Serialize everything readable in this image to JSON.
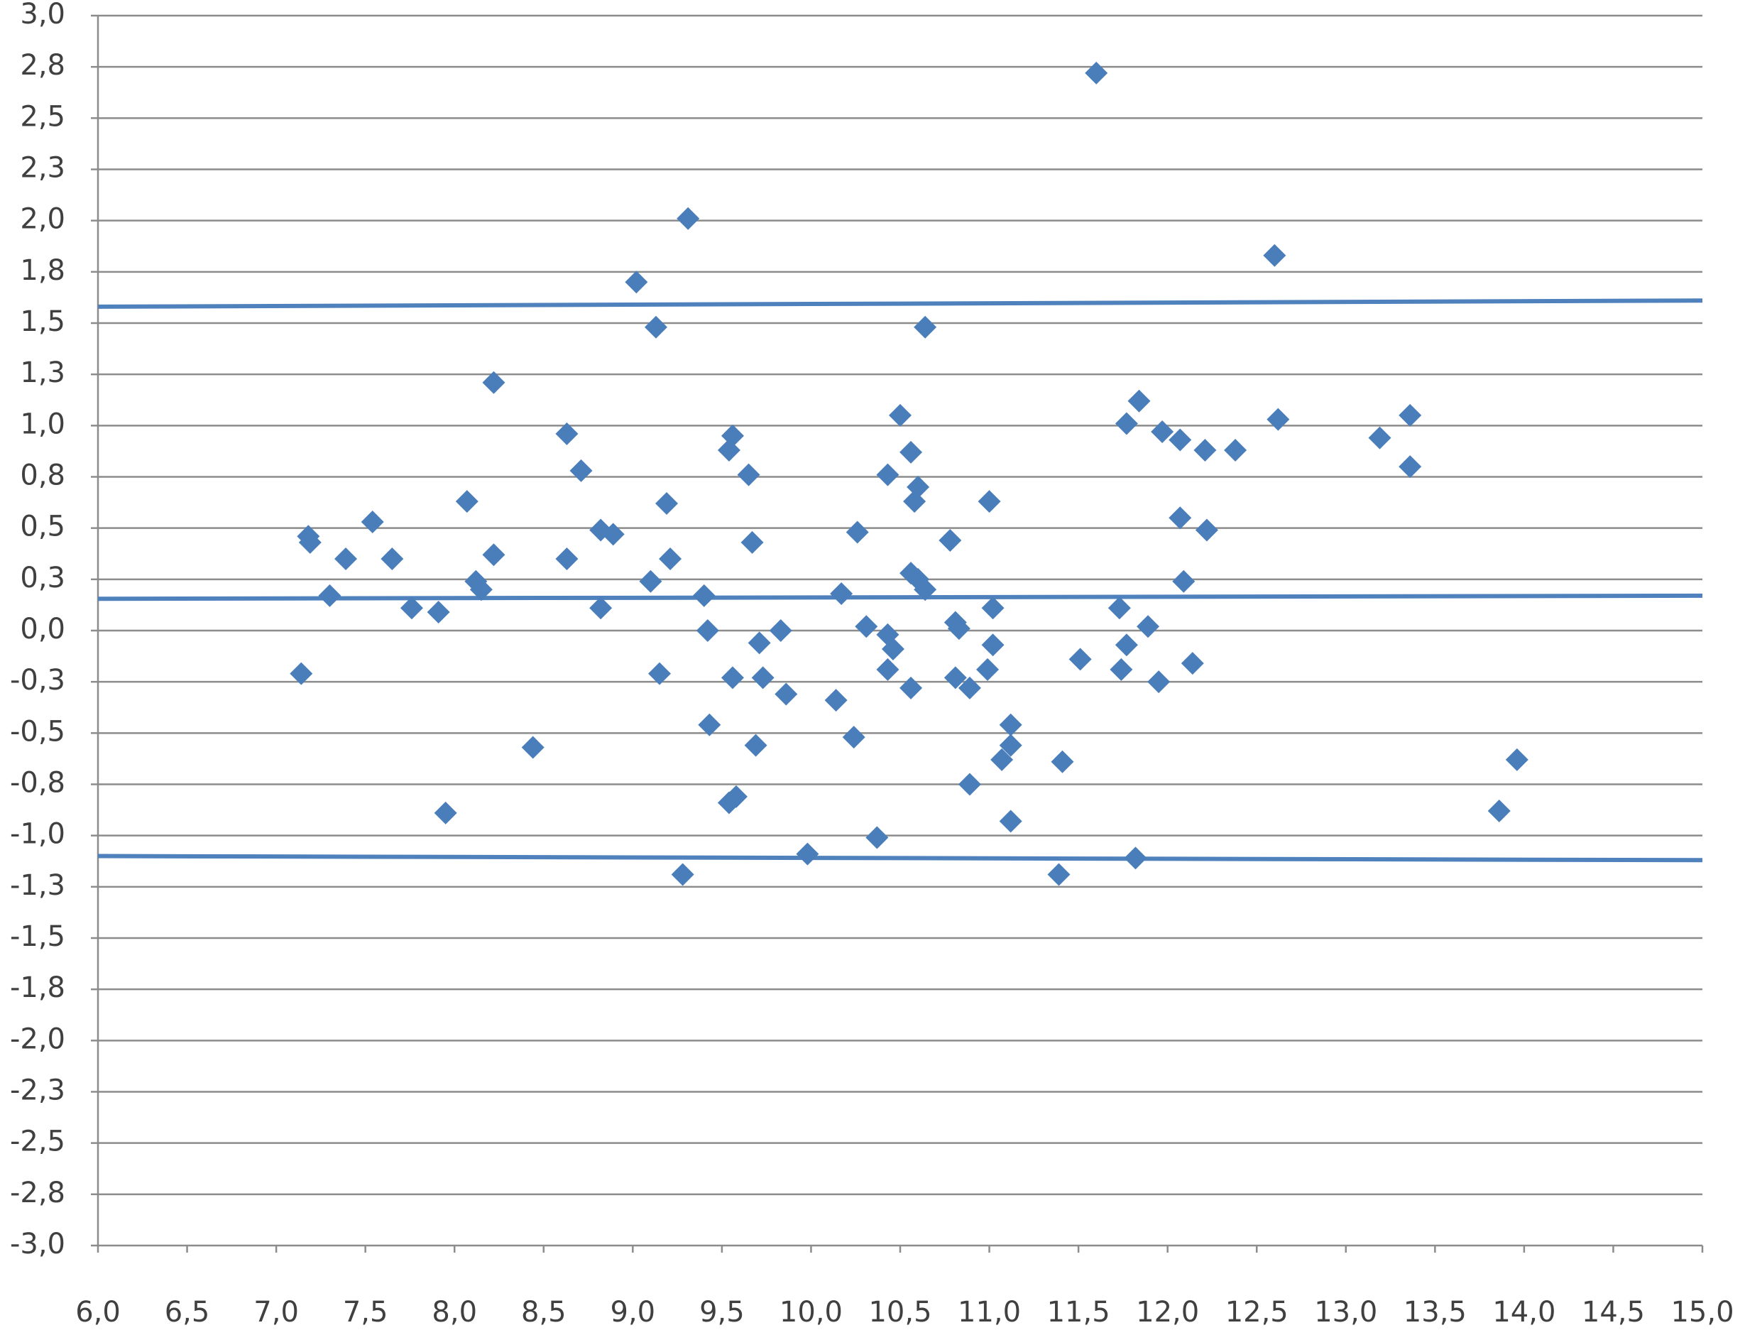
{
  "chart_data": {
    "type": "scatter",
    "xlim": [
      6,
      15
    ],
    "xticks": [
      {
        "value": 6,
        "label": "6,0"
      },
      {
        "value": 6.5,
        "label": "6,5"
      },
      {
        "value": 7,
        "label": "7,0"
      },
      {
        "value": 7.5,
        "label": "7,5"
      },
      {
        "value": 8,
        "label": "8,0"
      },
      {
        "value": 8.5,
        "label": "8,5"
      },
      {
        "value": 9,
        "label": "9,0"
      },
      {
        "value": 9.5,
        "label": "9,5"
      },
      {
        "value": 10,
        "label": "10,0"
      },
      {
        "value": 10.5,
        "label": "10,5"
      },
      {
        "value": 11,
        "label": "11,0"
      },
      {
        "value": 11.5,
        "label": "11,5"
      },
      {
        "value": 12,
        "label": "12,0"
      },
      {
        "value": 12.5,
        "label": "12,5"
      },
      {
        "value": 13,
        "label": "13,0"
      },
      {
        "value": 13.5,
        "label": "13,5"
      },
      {
        "value": 14,
        "label": "14,0"
      },
      {
        "value": 14.5,
        "label": "14,5"
      },
      {
        "value": 15,
        "label": "15,0"
      }
    ],
    "ylim": [
      -3,
      3
    ],
    "yticks": [
      {
        "value": 3,
        "label": "3,0"
      },
      {
        "value": 2.75,
        "label": "2,8"
      },
      {
        "value": 2.5,
        "label": "2,5"
      },
      {
        "value": 2.25,
        "label": "2,3"
      },
      {
        "value": 2,
        "label": "2,0"
      },
      {
        "value": 1.75,
        "label": "1,8"
      },
      {
        "value": 1.5,
        "label": "1,5"
      },
      {
        "value": 1.25,
        "label": "1,3"
      },
      {
        "value": 1,
        "label": "1,0"
      },
      {
        "value": 0.75,
        "label": "0,8"
      },
      {
        "value": 0.5,
        "label": "0,5"
      },
      {
        "value": 0.25,
        "label": "0,3"
      },
      {
        "value": 0,
        "label": "0,0"
      },
      {
        "value": -0.25,
        "label": "-0,3"
      },
      {
        "value": -0.5,
        "label": "-0,5"
      },
      {
        "value": -0.75,
        "label": "-0,8"
      },
      {
        "value": -1,
        "label": "-1,0"
      },
      {
        "value": -1.25,
        "label": "-1,3"
      },
      {
        "value": -1.5,
        "label": "-1,5"
      },
      {
        "value": -1.75,
        "label": "-1,8"
      },
      {
        "value": -2,
        "label": "-2,0"
      },
      {
        "value": -2.25,
        "label": "-2,3"
      },
      {
        "value": -2.5,
        "label": "-2,5"
      },
      {
        "value": -2.75,
        "label": "-2,8"
      },
      {
        "value": -3,
        "label": "-3,0"
      }
    ],
    "grid": true,
    "points": {
      "color": "#4a7ebb",
      "x": [
        11.6,
        9.31,
        12.6,
        9.02,
        9.13,
        10.64,
        8.22,
        11.84,
        11.77,
        10.5,
        12.62,
        13.36,
        11.97,
        12.07,
        12.21,
        12.38,
        13.19,
        13.36,
        8.63,
        9.56,
        9.54,
        8.71,
        9.65,
        10.56,
        10.43,
        10.6,
        10.58,
        11.0,
        8.07,
        9.19,
        7.18,
        7.19,
        7.54,
        7.39,
        7.65,
        8.22,
        8.63,
        8.82,
        8.89,
        9.21,
        9.67,
        10.26,
        10.78,
        12.07,
        12.22,
        9.1,
        8.12,
        8.15,
        7.3,
        7.76,
        7.91,
        8.82,
        9.4,
        10.17,
        10.56,
        10.6,
        10.64,
        12.09,
        11.02,
        11.73,
        9.42,
        9.83,
        9.71,
        10.31,
        10.43,
        10.46,
        10.81,
        10.83,
        11.02,
        11.89,
        11.77,
        7.14,
        9.15,
        9.56,
        9.73,
        9.86,
        10.43,
        10.56,
        10.81,
        10.89,
        10.99,
        11.51,
        11.74,
        11.95,
        12.14,
        10.14,
        9.43,
        11.12,
        10.24,
        8.44,
        9.69,
        11.12,
        11.07,
        11.41,
        13.96,
        10.89,
        9.58,
        9.54,
        7.95,
        13.86,
        11.12,
        10.37,
        9.98,
        11.82,
        9.28,
        11.39
      ],
      "y": [
        2.72,
        2.01,
        1.83,
        1.7,
        1.48,
        1.48,
        1.21,
        1.12,
        1.01,
        1.05,
        1.03,
        1.05,
        0.97,
        0.93,
        0.88,
        0.88,
        0.94,
        0.8,
        0.96,
        0.95,
        0.88,
        0.78,
        0.76,
        0.87,
        0.76,
        0.7,
        0.63,
        0.63,
        0.63,
        0.62,
        0.46,
        0.43,
        0.53,
        0.35,
        0.35,
        0.37,
        0.35,
        0.49,
        0.47,
        0.35,
        0.43,
        0.48,
        0.44,
        0.55,
        0.49,
        0.24,
        0.24,
        0.2,
        0.17,
        0.11,
        0.09,
        0.11,
        0.17,
        0.18,
        0.28,
        0.25,
        0.2,
        0.24,
        0.11,
        0.11,
        0.0,
        0.0,
        -0.06,
        0.02,
        -0.02,
        -0.09,
        0.04,
        0.01,
        -0.07,
        0.02,
        -0.07,
        -0.21,
        -0.21,
        -0.23,
        -0.23,
        -0.31,
        -0.19,
        -0.28,
        -0.23,
        -0.28,
        -0.19,
        -0.14,
        -0.19,
        -0.25,
        -0.16,
        -0.34,
        -0.46,
        -0.46,
        -0.52,
        -0.57,
        -0.56,
        -0.56,
        -0.63,
        -0.64,
        -0.63,
        -0.75,
        -0.81,
        -0.84,
        -0.89,
        -0.88,
        -0.93,
        -1.01,
        -1.09,
        -1.11,
        -1.19,
        -1.19
      ]
    },
    "lines": [
      {
        "color": "#4f81bd",
        "x": [
          6,
          15
        ],
        "y": [
          1.58,
          1.61
        ]
      },
      {
        "color": "#4f81bd",
        "x": [
          6,
          15
        ],
        "y": [
          0.155,
          0.17
        ]
      },
      {
        "color": "#4f81bd",
        "x": [
          6,
          15
        ],
        "y": [
          -1.1,
          -1.12
        ]
      }
    ]
  }
}
